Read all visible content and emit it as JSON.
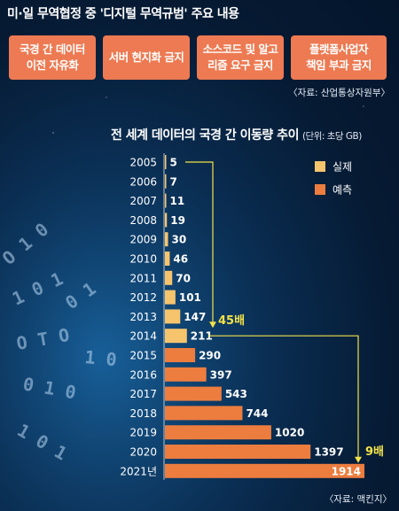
{
  "header": {
    "title": "미·일 무역협정 중 '디지털 무역규범' 주요 내용"
  },
  "rules": [
    {
      "line1": "국경 간 데이터",
      "line2": "이전 자유화"
    },
    {
      "line1": "서버 현지화 금지",
      "line2": ""
    },
    {
      "line1": "소스코드 및 알고",
      "line2": "리즘 요구 금지"
    },
    {
      "line1": "플랫폼사업자",
      "line2": "책임 부과 금지"
    }
  ],
  "source_top": "〈자료: 산업통상자원부〉",
  "chart_title": {
    "main": "전 세계 데이터의 국경 간 이동량 추이",
    "unit": "(단위: 초당 GB)"
  },
  "source_bottom": "〈자료: 맥킨지〉",
  "colors": {
    "actual": "#f6c46d",
    "forecast": "#ec7d3f",
    "title_bar": "#0b2f5e",
    "rule_box": "#ed7a52",
    "annotation": "#f3e24a"
  },
  "chart_data": {
    "type": "bar",
    "orientation": "horizontal",
    "categories": [
      "2005",
      "2006",
      "2007",
      "2008",
      "2009",
      "2010",
      "2011",
      "2012",
      "2013",
      "2014",
      "2015",
      "2016",
      "2017",
      "2018",
      "2019",
      "2020",
      "2021년"
    ],
    "values": [
      5,
      7,
      11,
      19,
      30,
      46,
      70,
      101,
      147,
      211,
      290,
      397,
      543,
      744,
      1020,
      1397,
      1914
    ],
    "kind": [
      "실제",
      "실제",
      "실제",
      "실제",
      "실제",
      "실제",
      "실제",
      "실제",
      "실제",
      "실제",
      "예측",
      "예측",
      "예측",
      "예측",
      "예측",
      "예측",
      "예측"
    ],
    "legend": [
      {
        "label": "실제",
        "color": "#f6c46d"
      },
      {
        "label": "예측",
        "color": "#ec7d3f"
      }
    ],
    "legend_position": "top-right",
    "annotations": [
      {
        "text": "45배",
        "from": "2005",
        "to": "2014"
      },
      {
        "text": "9배",
        "from": "2014",
        "to": "2021년"
      }
    ],
    "xlim": [
      0,
      1914
    ]
  }
}
